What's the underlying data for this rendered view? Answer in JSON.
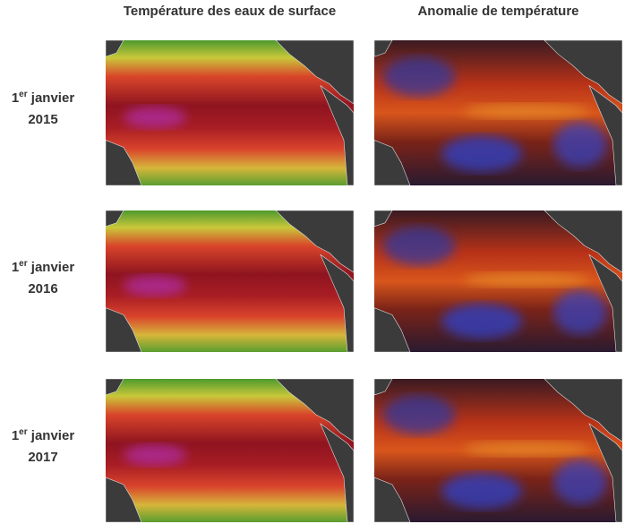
{
  "columns": [
    "Température des eaux de surface",
    "Anomalie de température"
  ],
  "rows": [
    {
      "day": "1",
      "suffix": "er",
      "month": "janvier",
      "year": "2015"
    },
    {
      "day": "1",
      "suffix": "er",
      "month": "janvier",
      "year": "2016"
    },
    {
      "day": "1",
      "suffix": "er",
      "month": "janvier",
      "year": "2017"
    }
  ]
}
